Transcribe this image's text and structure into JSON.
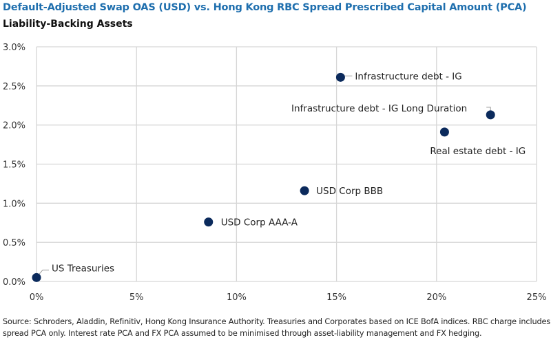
{
  "chart_data": {
    "type": "scatter",
    "title": "Default-Adjusted Swap OAS (USD) vs. Hong Kong RBC Spread Prescribed Capital Amount (PCA)",
    "subtitle": "Liability-Backing Assets",
    "xlabel": "",
    "ylabel": "",
    "xlim": [
      0,
      25
    ],
    "ylim": [
      0,
      3.0
    ],
    "x_ticks": [
      "0%",
      "5%",
      "10%",
      "15%",
      "20%",
      "25%"
    ],
    "y_ticks": [
      "0.0%",
      "0.5%",
      "1.0%",
      "1.5%",
      "2.0%",
      "2.5%",
      "3.0%"
    ],
    "grid": true,
    "marker_color": "#0b2a5c",
    "points": [
      {
        "label": "US Treasuries",
        "x": 0.0,
        "y": 0.05
      },
      {
        "label": "USD Corp AAA-A",
        "x": 8.6,
        "y": 0.76
      },
      {
        "label": "USD Corp BBB",
        "x": 13.4,
        "y": 1.16
      },
      {
        "label": "Infrastructure debt - IG",
        "x": 15.2,
        "y": 2.61
      },
      {
        "label": "Real estate debt - IG",
        "x": 20.4,
        "y": 1.91
      },
      {
        "label": "Infrastructure debt - IG Long Duration",
        "x": 22.7,
        "y": 2.13
      }
    ]
  },
  "source": "Source: Schroders, Aladdin, Refinitiv, Hong Kong Insurance Authority. Treasuries and Corporates based on ICE BofA indices. RBC charge includes spread PCA only. Interest rate PCA and FX PCA assumed to be minimised through asset-liability management and FX hedging."
}
